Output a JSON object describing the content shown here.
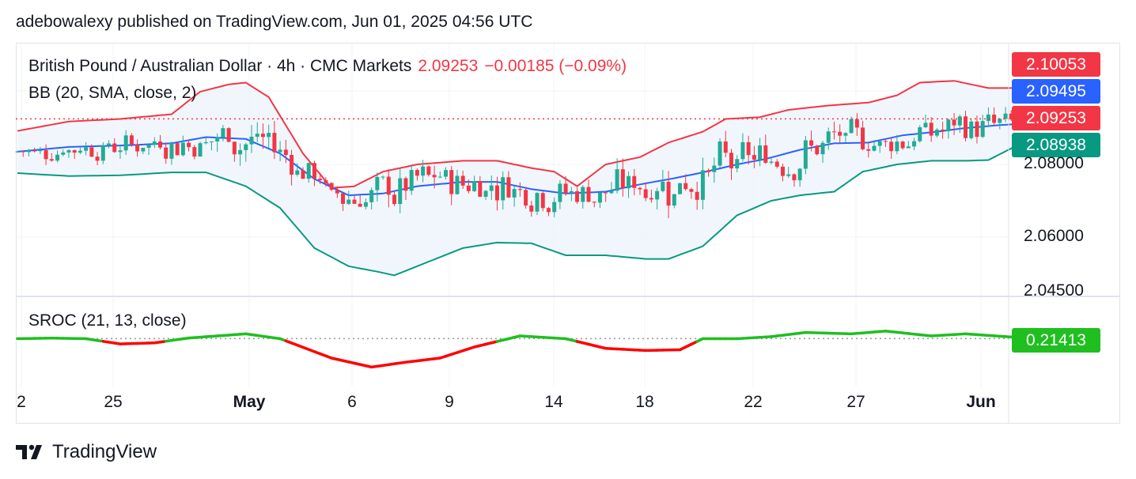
{
  "header": {
    "text": "adebowalexy published on TradingView.com, Jun 01, 2025 04:56 UTC"
  },
  "legend": {
    "symbol": "British Pound / Australian Dollar · 4h · CMC Markets",
    "price": "2.09253",
    "change": "−0.00185 (−0.09%)",
    "bb": "BB (20, SMA, close, 2)",
    "sroc": "SROC (21, 13, close)"
  },
  "price_tags": {
    "upper": "2.10053",
    "middle": "2.09495",
    "last": "2.09253",
    "lower": "2.08938",
    "sroc": "0.21413"
  },
  "colors": {
    "up": "#22ab94",
    "down": "#f23645",
    "bb_upper": "#f23645",
    "bb_middle": "#2962ff",
    "bb_lower": "#089981",
    "bb_fill": "#eef4fb",
    "sroc_pos": "#1fbf1f",
    "sroc_neg": "#ff0000"
  },
  "footer": {
    "brand": "TradingView"
  },
  "chart_data": {
    "type": "candlestick",
    "timeframe": "4h",
    "y_axis": {
      "ticks": [
        "2.08000",
        "2.06000",
        "2.04500"
      ],
      "range": [
        2.0435,
        2.108
      ]
    },
    "x_axis": {
      "ticks": [
        "2",
        "25",
        "May",
        "6",
        "9",
        "14",
        "18",
        "22",
        "27",
        "Jun"
      ]
    },
    "series": [
      {
        "name": "BB upper",
        "type": "line",
        "points": [
          [
            0,
            2.0892
          ],
          [
            9,
            2.0918
          ],
          [
            18,
            2.0925
          ],
          [
            27,
            2.0938
          ],
          [
            32,
            2.1
          ],
          [
            37,
            2.102
          ],
          [
            40,
            2.1025
          ],
          [
            44,
            2.0985
          ],
          [
            50,
            2.083
          ],
          [
            55,
            2.0735
          ],
          [
            59,
            2.074
          ],
          [
            64,
            2.078
          ],
          [
            70,
            2.08
          ],
          [
            78,
            2.081
          ],
          [
            84,
            2.081
          ],
          [
            90,
            2.079
          ],
          [
            94,
            2.078
          ],
          [
            98,
            2.074
          ],
          [
            103,
            2.08
          ],
          [
            109,
            2.082
          ],
          [
            114,
            2.086
          ],
          [
            120,
            2.089
          ],
          [
            124,
            2.0925
          ],
          [
            130,
            2.093
          ],
          [
            135,
            2.095
          ],
          [
            142,
            2.0962
          ],
          [
            149,
            2.097
          ],
          [
            154,
            2.099
          ],
          [
            158,
            2.1025
          ],
          [
            164,
            2.103
          ],
          [
            170,
            2.101
          ],
          [
            175,
            2.101
          ],
          [
            179,
            2.1
          ]
        ]
      },
      {
        "name": "BB middle",
        "type": "line",
        "points": [
          [
            0,
            2.0835
          ],
          [
            9,
            2.0848
          ],
          [
            18,
            2.0852
          ],
          [
            27,
            2.0858
          ],
          [
            33,
            2.0875
          ],
          [
            40,
            2.087
          ],
          [
            46,
            2.083
          ],
          [
            52,
            2.076
          ],
          [
            58,
            2.0715
          ],
          [
            64,
            2.072
          ],
          [
            70,
            2.074
          ],
          [
            78,
            2.0752
          ],
          [
            84,
            2.0752
          ],
          [
            90,
            2.0732
          ],
          [
            96,
            2.072
          ],
          [
            103,
            2.0725
          ],
          [
            109,
            2.0745
          ],
          [
            115,
            2.0762
          ],
          [
            120,
            2.0778
          ],
          [
            126,
            2.08
          ],
          [
            131,
            2.0815
          ],
          [
            137,
            2.084
          ],
          [
            143,
            2.0858
          ],
          [
            149,
            2.086
          ],
          [
            155,
            2.088
          ],
          [
            161,
            2.089
          ],
          [
            166,
            2.09
          ],
          [
            172,
            2.0908
          ],
          [
            176,
            2.0912
          ],
          [
            179,
            2.0902
          ]
        ]
      },
      {
        "name": "BB lower",
        "type": "line",
        "points": [
          [
            0,
            2.0776
          ],
          [
            9,
            2.0768
          ],
          [
            18,
            2.077
          ],
          [
            27,
            2.0778
          ],
          [
            33,
            2.0778
          ],
          [
            40,
            2.074
          ],
          [
            46,
            2.068
          ],
          [
            52,
            2.057
          ],
          [
            58,
            2.052
          ],
          [
            63,
            2.0505
          ],
          [
            66,
            2.0495
          ],
          [
            70,
            2.052
          ],
          [
            78,
            2.057
          ],
          [
            84,
            2.0585
          ],
          [
            90,
            2.0583
          ],
          [
            96,
            2.055
          ],
          [
            103,
            2.055
          ],
          [
            110,
            2.054
          ],
          [
            114,
            2.054
          ],
          [
            120,
            2.0575
          ],
          [
            126,
            2.066
          ],
          [
            132,
            2.07
          ],
          [
            137,
            2.0715
          ],
          [
            143,
            2.0725
          ],
          [
            148,
            2.078
          ],
          [
            154,
            2.08
          ],
          [
            160,
            2.081
          ],
          [
            166,
            2.081
          ],
          [
            170,
            2.0812
          ],
          [
            176,
            2.086
          ],
          [
            179,
            2.0862
          ]
        ]
      },
      {
        "name": "SROC",
        "type": "line",
        "points": [
          [
            0,
            0.2
          ],
          [
            6,
            0.24
          ],
          [
            12,
            0.2
          ],
          [
            18,
            -0.18
          ],
          [
            24,
            -0.1
          ],
          [
            30,
            0.25
          ],
          [
            40,
            0.55
          ],
          [
            46,
            0.2
          ],
          [
            55,
            -1.2
          ],
          [
            62,
            -1.85
          ],
          [
            68,
            -1.5
          ],
          [
            74,
            -1.2
          ],
          [
            80,
            -0.4
          ],
          [
            88,
            0.4
          ],
          [
            96,
            0.2
          ],
          [
            103,
            -0.5
          ],
          [
            110,
            -0.65
          ],
          [
            116,
            -0.6
          ],
          [
            120,
            0.2
          ],
          [
            126,
            0.2
          ],
          [
            132,
            0.35
          ],
          [
            138,
            0.65
          ],
          [
            146,
            0.55
          ],
          [
            152,
            0.75
          ],
          [
            160,
            0.4
          ],
          [
            166,
            0.55
          ],
          [
            174,
            0.32
          ],
          [
            179,
            0.21
          ]
        ]
      }
    ],
    "last_price": 2.09253,
    "sroc_last": 0.21413
  }
}
